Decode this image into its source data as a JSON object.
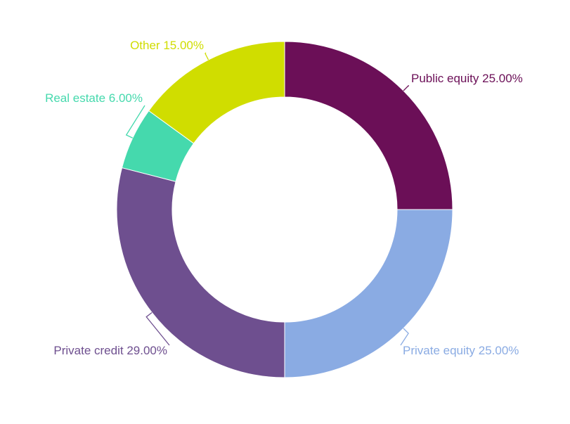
{
  "chart_data": {
    "type": "donut",
    "categories": [
      "Public equity",
      "Private equity",
      "Private credit",
      "Real estate",
      "Other"
    ],
    "values": [
      25,
      25,
      29,
      6,
      15
    ],
    "value_labels": [
      "25.00%",
      "25.00%",
      "29.00%",
      "6.00%",
      "15.00%"
    ],
    "colors": [
      "#6b0f57",
      "#8aabe3",
      "#6e4f8f",
      "#45d9ad",
      "#d0dd00"
    ]
  }
}
